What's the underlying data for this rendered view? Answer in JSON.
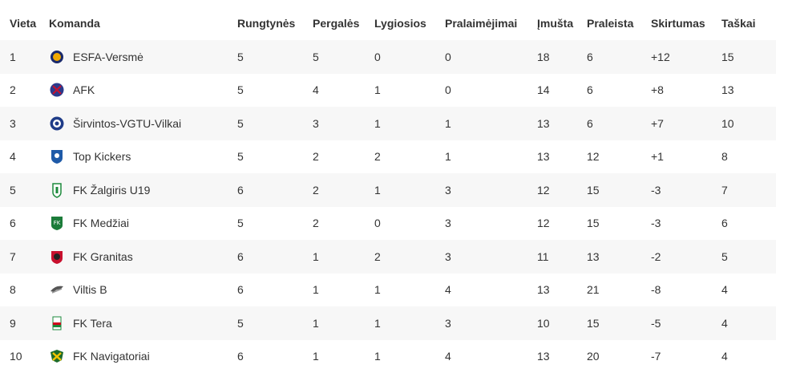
{
  "headers": {
    "position": "Vieta",
    "team": "Komanda",
    "played": "Rungtynės",
    "wins": "Pergalės",
    "draws": "Lygiosios",
    "losses": "Pralaimėjimai",
    "scored": "Įmušta",
    "conceded": "Praleista",
    "difference": "Skirtumas",
    "points": "Taškai"
  },
  "rows": [
    {
      "position": "1",
      "team": "ESFA-Versmė",
      "played": "5",
      "wins": "5",
      "draws": "0",
      "losses": "0",
      "scored": "18",
      "conceded": "6",
      "difference": "+12",
      "points": "15",
      "logo_icon": "esfa-versme-crest-icon",
      "logo_colors": [
        "#f2a900",
        "#1a2a6c"
      ]
    },
    {
      "position": "2",
      "team": "AFK",
      "played": "5",
      "wins": "4",
      "draws": "1",
      "losses": "0",
      "scored": "14",
      "conceded": "6",
      "difference": "+8",
      "points": "13",
      "logo_icon": "afk-crest-icon",
      "logo_colors": [
        "#2b3a8c",
        "#c8102e"
      ]
    },
    {
      "position": "3",
      "team": "Širvintos-VGTU-Vilkai",
      "played": "5",
      "wins": "3",
      "draws": "1",
      "losses": "1",
      "scored": "13",
      "conceded": "6",
      "difference": "+7",
      "points": "10",
      "logo_icon": "sirvintos-vgtu-vilkai-crest-icon",
      "logo_colors": [
        "#1f3c88",
        "#ffffff"
      ]
    },
    {
      "position": "4",
      "team": "Top Kickers",
      "played": "5",
      "wins": "2",
      "draws": "2",
      "losses": "1",
      "scored": "13",
      "conceded": "12",
      "difference": "+1",
      "points": "8",
      "logo_icon": "top-kickers-crest-icon",
      "logo_colors": [
        "#1e5aa8",
        "#ffffff"
      ]
    },
    {
      "position": "5",
      "team": "FK Žalgiris U19",
      "played": "6",
      "wins": "2",
      "draws": "1",
      "losses": "3",
      "scored": "12",
      "conceded": "15",
      "difference": "-3",
      "points": "7",
      "logo_icon": "zalgiris-crest-icon",
      "logo_colors": [
        "#1d8a3c",
        "#ffffff"
      ]
    },
    {
      "position": "6",
      "team": "FK Medžiai",
      "played": "5",
      "wins": "2",
      "draws": "0",
      "losses": "3",
      "scored": "12",
      "conceded": "15",
      "difference": "-3",
      "points": "6",
      "logo_icon": "medziai-crest-icon",
      "logo_colors": [
        "#1c7c3a",
        "#ffffff"
      ]
    },
    {
      "position": "7",
      "team": "FK Granitas",
      "played": "6",
      "wins": "1",
      "draws": "2",
      "losses": "3",
      "scored": "11",
      "conceded": "13",
      "difference": "-2",
      "points": "5",
      "logo_icon": "granitas-crest-icon",
      "logo_colors": [
        "#c8102e",
        "#222222"
      ]
    },
    {
      "position": "8",
      "team": "Viltis B",
      "played": "6",
      "wins": "1",
      "draws": "1",
      "losses": "4",
      "scored": "13",
      "conceded": "21",
      "difference": "-8",
      "points": "4",
      "logo_icon": "viltis-crest-icon",
      "logo_colors": [
        "#555555",
        "#999999"
      ]
    },
    {
      "position": "9",
      "team": "FK Tera",
      "played": "5",
      "wins": "1",
      "draws": "1",
      "losses": "3",
      "scored": "10",
      "conceded": "15",
      "difference": "-5",
      "points": "4",
      "logo_icon": "tera-crest-icon",
      "logo_colors": [
        "#1d8a3c",
        "#d0021b"
      ]
    },
    {
      "position": "10",
      "team": "FK Navigatoriai",
      "played": "6",
      "wins": "1",
      "draws": "1",
      "losses": "4",
      "scored": "13",
      "conceded": "20",
      "difference": "-7",
      "points": "4",
      "logo_icon": "navigatoriai-crest-icon",
      "logo_colors": [
        "#1d6b2c",
        "#f2c500"
      ]
    }
  ]
}
